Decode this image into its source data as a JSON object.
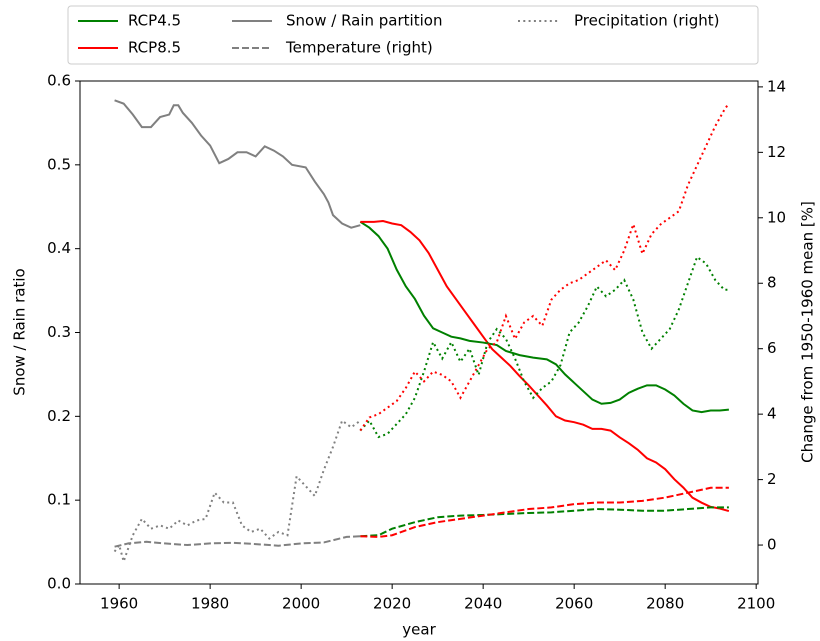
{
  "chart_data": {
    "type": "line",
    "xlabel": "year",
    "ylabel": "Snow / Rain ratio",
    "y2label": "Change from 1950-1960 mean [%]",
    "xlim": [
      1951.4,
      2100.4
    ],
    "ylim": [
      0,
      0.6
    ],
    "y2lim": [
      -1.19,
      14.18
    ],
    "xticks": [
      1960,
      1980,
      2000,
      2020,
      2040,
      2060,
      2080,
      2100
    ],
    "yticks": [
      {
        "value": 0,
        "label": "0.0"
      },
      0.1,
      0.2,
      0.3,
      0.4,
      0.5,
      0.6
    ],
    "y2ticks": [
      0,
      2,
      4,
      6,
      8,
      10,
      12,
      14
    ],
    "legend": [
      {
        "label": "RCP4.5",
        "color": "#008000",
        "style": "solid"
      },
      {
        "label": "RCP8.5",
        "color": "#ff0000",
        "style": "solid"
      },
      {
        "label": "Snow / Rain partition",
        "color": "#808080",
        "style": "solid"
      },
      {
        "label": "Temperature (right)",
        "color": "#808080",
        "style": "dashed"
      },
      {
        "label": "Precipitation (right)",
        "color": "#808080",
        "style": "dotted"
      }
    ],
    "series": [
      {
        "color": "#808080",
        "style": "solid",
        "axis": "y",
        "x": [
          1959,
          1961,
          1963,
          1965,
          1967,
          1969,
          1971,
          1972,
          1973,
          1974,
          1976,
          1978,
          1980,
          1982,
          1984,
          1986,
          1988,
          1990,
          1992,
          1994,
          1996,
          1998,
          2001,
          2003,
          2005,
          2006,
          2007,
          2009,
          2011,
          2013
        ],
        "values": [
          0.577,
          0.573,
          0.56,
          0.545,
          0.545,
          0.557,
          0.56,
          0.571,
          0.571,
          0.562,
          0.55,
          0.535,
          0.523,
          0.502,
          0.507,
          0.515,
          0.515,
          0.51,
          0.522,
          0.517,
          0.51,
          0.5,
          0.497,
          0.48,
          0.465,
          0.455,
          0.44,
          0.43,
          0.425,
          0.428
        ]
      },
      {
        "color": "#008000",
        "style": "solid",
        "axis": "y",
        "x": [
          2013,
          2015,
          2017,
          2019,
          2021,
          2023,
          2025,
          2027,
          2029,
          2031,
          2033,
          2035,
          2037,
          2040,
          2043,
          2045,
          2048,
          2051,
          2054,
          2056,
          2058,
          2060,
          2062,
          2064,
          2066,
          2068,
          2070,
          2072,
          2074,
          2076,
          2078,
          2080,
          2082,
          2084,
          2086,
          2088,
          2090,
          2092,
          2094
        ],
        "values": [
          0.432,
          0.425,
          0.415,
          0.4,
          0.375,
          0.355,
          0.34,
          0.32,
          0.305,
          0.3,
          0.295,
          0.293,
          0.29,
          0.288,
          0.285,
          0.278,
          0.273,
          0.27,
          0.268,
          0.262,
          0.25,
          0.24,
          0.23,
          0.22,
          0.215,
          0.216,
          0.22,
          0.228,
          0.233,
          0.237,
          0.237,
          0.232,
          0.225,
          0.215,
          0.207,
          0.205,
          0.207,
          0.207,
          0.208
        ]
      },
      {
        "color": "#ff0000",
        "style": "solid",
        "axis": "y",
        "x": [
          2013,
          2016,
          2018,
          2020,
          2022,
          2024,
          2026,
          2028,
          2030,
          2032,
          2034,
          2036,
          2038,
          2040,
          2042,
          2044,
          2046,
          2048,
          2050,
          2052,
          2054,
          2056,
          2058,
          2060,
          2062,
          2064,
          2066,
          2068,
          2070,
          2072,
          2074,
          2076,
          2078,
          2080,
          2082,
          2084,
          2086,
          2088,
          2090,
          2092,
          2094
        ],
        "values": [
          0.432,
          0.432,
          0.433,
          0.43,
          0.428,
          0.42,
          0.41,
          0.395,
          0.375,
          0.355,
          0.34,
          0.325,
          0.31,
          0.295,
          0.28,
          0.27,
          0.26,
          0.248,
          0.237,
          0.225,
          0.213,
          0.2,
          0.195,
          0.193,
          0.19,
          0.185,
          0.185,
          0.183,
          0.175,
          0.168,
          0.16,
          0.15,
          0.145,
          0.137,
          0.125,
          0.115,
          0.103,
          0.097,
          0.092,
          0.09,
          0.087
        ]
      },
      {
        "color": "#808080",
        "style": "dashed",
        "axis": "y2",
        "x": [
          1959,
          1962,
          1966,
          1970,
          1975,
          1980,
          1985,
          1990,
          1995,
          2000,
          2005,
          2010,
          2013
        ],
        "values": [
          -0.05,
          0.05,
          0.1,
          0.05,
          0.0,
          0.05,
          0.07,
          0.03,
          -0.02,
          0.05,
          0.08,
          0.25,
          0.27
        ]
      },
      {
        "color": "#008000",
        "style": "dashed",
        "axis": "y2",
        "x": [
          2013,
          2017,
          2020,
          2025,
          2030,
          2035,
          2040,
          2045,
          2050,
          2055,
          2060,
          2065,
          2070,
          2075,
          2080,
          2085,
          2090,
          2094
        ],
        "values": [
          0.27,
          0.3,
          0.5,
          0.7,
          0.85,
          0.9,
          0.92,
          0.95,
          0.98,
          1.0,
          1.05,
          1.1,
          1.08,
          1.05,
          1.05,
          1.1,
          1.15,
          1.15
        ]
      },
      {
        "color": "#ff0000",
        "style": "dashed",
        "axis": "y2",
        "x": [
          2013,
          2017,
          2020,
          2025,
          2030,
          2035,
          2040,
          2045,
          2050,
          2055,
          2060,
          2065,
          2070,
          2075,
          2080,
          2085,
          2090,
          2094
        ],
        "values": [
          0.27,
          0.25,
          0.3,
          0.55,
          0.7,
          0.8,
          0.9,
          1.0,
          1.1,
          1.15,
          1.25,
          1.3,
          1.3,
          1.35,
          1.45,
          1.6,
          1.75,
          1.75
        ]
      },
      {
        "color": "#808080",
        "style": "dotted",
        "axis": "y2",
        "x": [
          1959,
          1960,
          1961,
          1963,
          1965,
          1967,
          1969,
          1971,
          1973,
          1975,
          1977,
          1979,
          1981,
          1983,
          1985,
          1987,
          1989,
          1991,
          1993,
          1995,
          1997,
          1999,
          2001,
          2003,
          2005,
          2007,
          2009,
          2011,
          2013
        ],
        "values": [
          -0.2,
          0.0,
          -0.5,
          0.3,
          0.8,
          0.5,
          0.6,
          0.5,
          0.75,
          0.6,
          0.75,
          0.8,
          1.6,
          1.3,
          1.3,
          0.6,
          0.4,
          0.5,
          0.2,
          0.4,
          0.3,
          2.1,
          1.8,
          1.5,
          2.3,
          3.0,
          3.8,
          3.6,
          3.8
        ]
      },
      {
        "color": "#008000",
        "style": "dotted",
        "axis": "y2",
        "x": [
          2013,
          2015,
          2017,
          2019,
          2021,
          2023,
          2025,
          2027,
          2029,
          2031,
          2033,
          2035,
          2037,
          2039,
          2041,
          2043,
          2045,
          2047,
          2049,
          2051,
          2053,
          2055,
          2057,
          2059,
          2061,
          2063,
          2065,
          2067,
          2069,
          2071,
          2073,
          2075,
          2077,
          2079,
          2081,
          2083,
          2085,
          2087,
          2089,
          2091,
          2093,
          2094
        ],
        "values": [
          3.5,
          3.8,
          3.3,
          3.4,
          3.7,
          4.0,
          4.5,
          5.3,
          6.2,
          5.7,
          6.2,
          5.6,
          6.0,
          5.2,
          6.2,
          6.6,
          6.3,
          5.7,
          5.0,
          4.5,
          4.8,
          5.0,
          5.5,
          6.5,
          6.8,
          7.3,
          7.9,
          7.6,
          7.8,
          8.1,
          7.5,
          6.5,
          6.0,
          6.3,
          6.6,
          7.2,
          8.0,
          8.8,
          8.6,
          8.1,
          7.8,
          7.8
        ]
      },
      {
        "color": "#ff0000",
        "style": "dotted",
        "axis": "y2",
        "x": [
          2013,
          2015,
          2017,
          2019,
          2021,
          2023,
          2025,
          2027,
          2029,
          2031,
          2033,
          2035,
          2037,
          2039,
          2041,
          2043,
          2045,
          2047,
          2049,
          2051,
          2053,
          2055,
          2057,
          2059,
          2061,
          2063,
          2065,
          2067,
          2069,
          2071,
          2073,
          2075,
          2077,
          2079,
          2081,
          2083,
          2085,
          2087,
          2089,
          2091,
          2093,
          2094
        ],
        "values": [
          3.5,
          3.9,
          4.0,
          4.2,
          4.4,
          4.8,
          5.3,
          5.0,
          5.3,
          5.2,
          5.0,
          4.5,
          5.0,
          5.5,
          6.0,
          6.2,
          7.0,
          6.3,
          6.8,
          7.0,
          6.7,
          7.5,
          7.8,
          8.0,
          8.1,
          8.3,
          8.5,
          8.7,
          8.4,
          9.0,
          9.8,
          8.9,
          9.5,
          9.8,
          10.0,
          10.2,
          11.0,
          11.6,
          12.2,
          12.8,
          13.3,
          13.5
        ]
      }
    ]
  }
}
